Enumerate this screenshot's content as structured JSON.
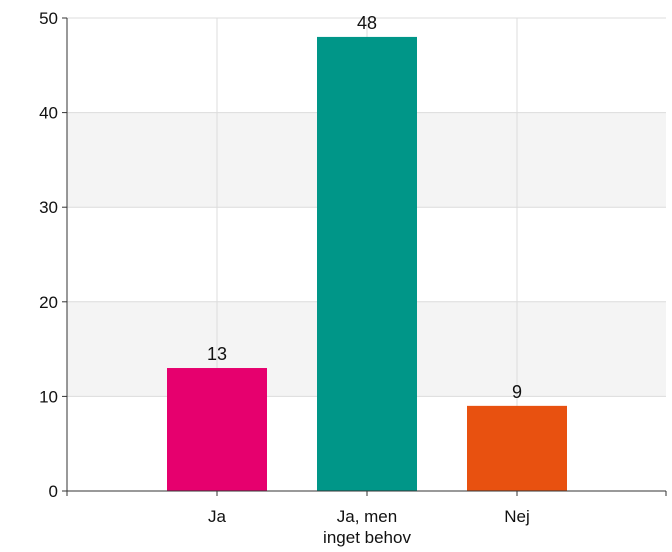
{
  "chart_data": {
    "type": "bar",
    "title": "",
    "xlabel": "",
    "ylabel": "",
    "categories": [
      [
        "Ja"
      ],
      [
        "Ja, men",
        "inget behov"
      ],
      [
        "Nej"
      ]
    ],
    "values": [
      13,
      48,
      9
    ],
    "colors": [
      "#e6006e",
      "#009688",
      "#e85110"
    ],
    "ylim": [
      0,
      50
    ],
    "yticks": [
      0,
      10,
      20,
      30,
      40,
      50
    ],
    "grid": true,
    "legend": "none",
    "band_color": "#f4f4f4",
    "grid_color": "#dcdcdc",
    "axis_color": "#333333"
  }
}
